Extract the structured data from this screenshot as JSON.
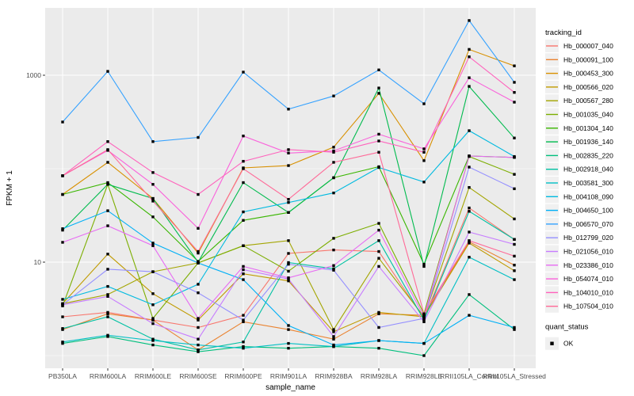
{
  "figure": {
    "panel_bg": "#EBEBEB",
    "grid_color": "#FFFFFF",
    "tick_color": "#333333",
    "tick_text_color": "#4D4D4D",
    "text_color": "#000000",
    "point_color": "#000000",
    "legend_key_bg": "#F0F0F0"
  },
  "legend": {
    "tracking_title": "tracking_id",
    "quant_title": "quant_status",
    "quant_items": [
      {
        "label": "OK"
      }
    ]
  },
  "chart_data": {
    "type": "line",
    "title": "",
    "xlabel": "sample_name",
    "ylabel": "FPKM + 1",
    "y_scale": "log10",
    "y_ticks": [
      10,
      1000
    ],
    "y_minor_ticks": [
      1,
      100
    ],
    "ylim": [
      0.75,
      5500
    ],
    "grid": true,
    "legend_position": "right",
    "categories": [
      "PB350LA",
      "RRIM600LA",
      "RRIM600LE",
      "RRIM600SE",
      "RRIM600PE",
      "RRIM901LA",
      "RRIM928BA",
      "RRIM928LA",
      "RRIM928LE",
      "RRII105LA_Control",
      "RRII105LA_Stressed"
    ],
    "series": [
      {
        "name": "Hb_000007_040",
        "color": "#F8766D",
        "values": [
          2.6,
          2.9,
          2.4,
          2.0,
          2.7,
          12.4,
          13.5,
          13.0,
          2.5,
          38,
          17.5
        ]
      },
      {
        "name": "Hb_000091_100",
        "color": "#EA8331",
        "values": [
          1.9,
          2.8,
          2.4,
          1.15,
          2.3,
          1.9,
          1.5,
          2.8,
          2.7,
          16.5,
          9.3
        ]
      },
      {
        "name": "Hb_000453_300",
        "color": "#D89000",
        "values": [
          53,
          117,
          48,
          12.5,
          102,
          108,
          170,
          640,
          122,
          1890,
          1260
        ]
      },
      {
        "name": "Hb_000566_020",
        "color": "#C09B00",
        "values": [
          3.6,
          12.2,
          4.6,
          2.4,
          7.5,
          6.3,
          1.8,
          2.9,
          2.6,
          16,
          8.1
        ]
      },
      {
        "name": "Hb_000567_280",
        "color": "#A3A500",
        "values": [
          3.6,
          4.5,
          7.9,
          9.8,
          15,
          17,
          1.9,
          11,
          2.6,
          63,
          29
        ]
      },
      {
        "name": "Hb_001035_040",
        "color": "#7CAE00",
        "values": [
          3.4,
          68,
          2.5,
          9.8,
          15,
          8,
          18,
          26,
          2.8,
          135,
          87
        ]
      },
      {
        "name": "Hb_001304_140",
        "color": "#39B600",
        "values": [
          53,
          71,
          30.5,
          10.2,
          28,
          34,
          80,
          105,
          9.5,
          137,
          132
        ]
      },
      {
        "name": "Hb_001936_140",
        "color": "#00BB4E",
        "values": [
          22,
          68,
          48,
          10,
          71,
          34,
          80,
          730,
          9.0,
          760,
          213
        ]
      },
      {
        "name": "Hb_002835_220",
        "color": "#00BF7D",
        "values": [
          1.35,
          1.6,
          1.3,
          1.1,
          1.25,
          1.2,
          1.25,
          1.2,
          1.0,
          4.5,
          1.9
        ]
      },
      {
        "name": "Hb_002918_040",
        "color": "#00C1A3",
        "values": [
          1.95,
          2.6,
          1.5,
          1.15,
          1.4,
          9.9,
          8.5,
          17,
          2.4,
          35,
          17.5
        ]
      },
      {
        "name": "Hb_003581_300",
        "color": "#00BFC4",
        "values": [
          1.4,
          1.65,
          1.45,
          1.3,
          1.2,
          1.35,
          1.25,
          1.45,
          1.35,
          11.3,
          6.5
        ]
      },
      {
        "name": "Hb_004108_090",
        "color": "#00BAE0",
        "values": [
          4.0,
          5.5,
          3.5,
          5.8,
          34.5,
          43.5,
          55,
          103,
          72,
          255,
          135
        ]
      },
      {
        "name": "Hb_004650_100",
        "color": "#00B0F6",
        "values": [
          22.8,
          35.5,
          16,
          9.8,
          6.5,
          2.1,
          1.3,
          1.45,
          1.35,
          2.7,
          2.0
        ]
      },
      {
        "name": "Hb_006570_070",
        "color": "#35A2FF",
        "values": [
          316,
          1100,
          195,
          216,
          1080,
          434,
          600,
          1140,
          495,
          3850,
          840
        ]
      },
      {
        "name": "Hb_012799_020",
        "color": "#9590FF",
        "values": [
          3.5,
          8.4,
          7.9,
          4.7,
          2.4,
          9.5,
          8.2,
          2.0,
          2.5,
          104,
          61
        ]
      },
      {
        "name": "Hb_021056_010",
        "color": "#C77CFF",
        "values": [
          3.5,
          4.3,
          2.2,
          1.5,
          8.3,
          6.6,
          1.6,
          9.0,
          2.3,
          21,
          15.5
        ]
      },
      {
        "name": "Hb_023386_010",
        "color": "#E76BF3",
        "values": [
          16.3,
          24.5,
          15,
          2.5,
          9.0,
          6.8,
          9.2,
          22,
          2.6,
          137,
          132
        ]
      },
      {
        "name": "Hb_054074_010",
        "color": "#FA62DB",
        "values": [
          84,
          157,
          68,
          23,
          224,
          147,
          155,
          234,
          163,
          940,
          515
        ]
      },
      {
        "name": "Hb_104010_010",
        "color": "#FF62BC",
        "values": [
          84,
          195,
          91,
          53,
          120,
          160,
          150,
          198,
          150,
          1575,
          655
        ]
      },
      {
        "name": "Hb_107504_010",
        "color": "#FF6A98",
        "values": [
          84,
          160,
          45,
          13,
          100,
          47,
          117,
          150,
          2.8,
          17,
          11.6
        ]
      }
    ]
  }
}
